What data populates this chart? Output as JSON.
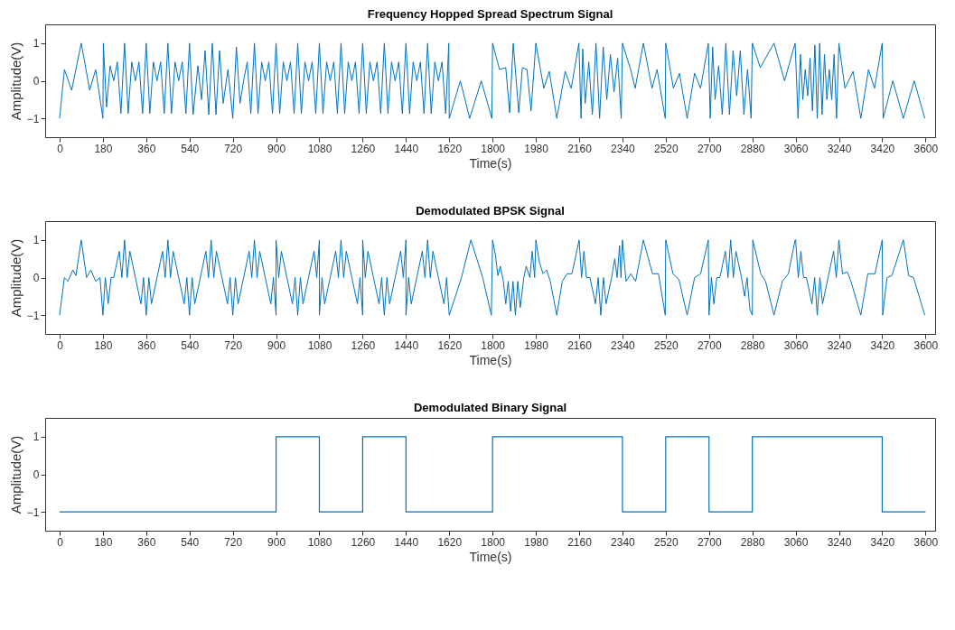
{
  "chart_data": [
    {
      "type": "line",
      "title": "Frequency Hopped Spread Spectrum Signal",
      "xlabel": "Time(s)",
      "ylabel": "Amplitude(V)",
      "color": "#0072bd",
      "xlim": [
        -60,
        3640
      ],
      "ylim": [
        -1.5,
        1.5
      ],
      "xticks": [
        0,
        180,
        360,
        540,
        720,
        900,
        1080,
        1260,
        1440,
        1620,
        1800,
        1980,
        2160,
        2340,
        2520,
        2700,
        2880,
        3060,
        3240,
        3420,
        3600
      ],
      "yticks": [
        -1,
        0,
        1
      ],
      "x": [
        0,
        20,
        50,
        90,
        125,
        150,
        180,
        182,
        195,
        210,
        225,
        240,
        255,
        270,
        285,
        300,
        315,
        330,
        345,
        360,
        375,
        390,
        405,
        420,
        435,
        450,
        465,
        480,
        495,
        510,
        525,
        540,
        555,
        575,
        590,
        605,
        620,
        635,
        650,
        665,
        680,
        700,
        720,
        735,
        750,
        765,
        780,
        795,
        810,
        825,
        840,
        855,
        870,
        885,
        900,
        915,
        930,
        945,
        960,
        975,
        990,
        1005,
        1020,
        1035,
        1050,
        1065,
        1080,
        1095,
        1110,
        1125,
        1140,
        1155,
        1170,
        1185,
        1200,
        1215,
        1230,
        1245,
        1260,
        1275,
        1290,
        1305,
        1320,
        1335,
        1350,
        1365,
        1380,
        1395,
        1410,
        1425,
        1440,
        1455,
        1470,
        1485,
        1500,
        1515,
        1530,
        1545,
        1560,
        1575,
        1590,
        1605,
        1618,
        1620,
        1666,
        1705,
        1753,
        1797,
        1800,
        1829,
        1855,
        1871,
        1886,
        1909,
        1924,
        1943,
        1960,
        1980,
        2013,
        2036,
        2067,
        2102,
        2127,
        2159,
        2168,
        2175,
        2185,
        2200,
        2215,
        2230,
        2245,
        2260,
        2275,
        2290,
        2305,
        2320,
        2335,
        2340,
        2374,
        2393,
        2427,
        2463,
        2484,
        2518,
        2520,
        2552,
        2577,
        2609,
        2640,
        2665,
        2697,
        2705,
        2715,
        2725,
        2740,
        2755,
        2770,
        2785,
        2800,
        2815,
        2830,
        2845,
        2860,
        2875,
        2880,
        2913,
        2970,
        3014,
        3058,
        3070,
        3080,
        3090,
        3100,
        3110,
        3120,
        3130,
        3140,
        3150,
        3160,
        3170,
        3180,
        3190,
        3200,
        3210,
        3220,
        3230,
        3240,
        3265,
        3299,
        3331,
        3363,
        3388,
        3420,
        3424,
        3464,
        3508,
        3553,
        3597
      ],
      "values": [
        -1,
        0.3,
        -0.25,
        1,
        -0.25,
        0.3,
        -1,
        1,
        -0.7,
        0.4,
        0,
        0.5,
        -0.87,
        1,
        -0.87,
        0.5,
        0,
        0.5,
        -0.87,
        1,
        -0.87,
        0.5,
        0,
        0.5,
        -0.87,
        1,
        -0.87,
        0.5,
        0,
        0.5,
        -0.87,
        1,
        -0.9,
        0.4,
        -0.5,
        0.8,
        -0.9,
        1,
        -0.9,
        0.8,
        -0.6,
        0.3,
        -1,
        0.9,
        -0.6,
        0,
        0.5,
        -0.87,
        1,
        -0.87,
        0.5,
        0,
        0.5,
        -0.87,
        1,
        -0.87,
        0.5,
        0,
        0.5,
        -0.87,
        1,
        -0.87,
        0.5,
        0,
        0.5,
        -0.87,
        1,
        -0.87,
        0.5,
        0,
        0.5,
        -0.87,
        1,
        -0.87,
        0.5,
        0,
        0.5,
        -0.87,
        1,
        -0.87,
        0.5,
        0,
        0.5,
        -0.87,
        1,
        -0.87,
        0.5,
        0,
        0.5,
        -0.87,
        1,
        -0.87,
        0.5,
        0,
        0.5,
        -0.87,
        1,
        -0.87,
        0.5,
        0,
        0.5,
        -0.87,
        1,
        -1,
        0,
        -1,
        0,
        -1,
        1,
        0.3,
        0.35,
        -0.85,
        1,
        -0.85,
        0.35,
        0.3,
        -0.8,
        1,
        -0.2,
        0.25,
        -1,
        0.25,
        -0.2,
        1,
        -1,
        0.85,
        -0.6,
        0.5,
        -0.9,
        1,
        -1,
        0.9,
        -0.5,
        0.7,
        -0.3,
        0.6,
        -1,
        1,
        0.3,
        -0.2,
        1,
        -0.2,
        0.3,
        -1,
        1,
        -0.2,
        0.2,
        -1,
        0.2,
        -0.2,
        1,
        -1,
        0.9,
        -0.5,
        0.4,
        -0.9,
        1,
        -0.9,
        0.8,
        -0.4,
        0.8,
        -0.9,
        0.3,
        -1,
        1,
        0.35,
        1,
        0,
        1,
        -1,
        0.7,
        -0.5,
        0.3,
        -0.4,
        0.6,
        -0.8,
        0.95,
        -1,
        1,
        -0.9,
        0.7,
        -0.5,
        0.3,
        -0.5,
        0.7,
        -1,
        1,
        -0.2,
        0.25,
        -1,
        0.3,
        -0.2,
        1,
        -1,
        0,
        -1,
        0,
        -1
      ]
    },
    {
      "type": "line",
      "title": "Demodulated BPSK Signal",
      "xlabel": "Time(s)",
      "ylabel": "Amplitude(V)",
      "color": "#0072bd",
      "xlim": [
        -60,
        3640
      ],
      "ylim": [
        -1.5,
        1.5
      ],
      "xticks": [
        0,
        180,
        360,
        540,
        720,
        900,
        1080,
        1260,
        1440,
        1620,
        1800,
        1980,
        2160,
        2340,
        2520,
        2700,
        2880,
        3060,
        3240,
        3420,
        3600
      ],
      "yticks": [
        -1,
        0,
        1
      ],
      "x": [
        0,
        20,
        35,
        55,
        68,
        90,
        112,
        130,
        150,
        168,
        180,
        190,
        202,
        214,
        225,
        248,
        259,
        270,
        281,
        292,
        315,
        338,
        349,
        360,
        371,
        382,
        405,
        428,
        439,
        450,
        461,
        472,
        495,
        518,
        529,
        540,
        551,
        562,
        585,
        608,
        619,
        630,
        641,
        652,
        675,
        698,
        709,
        720,
        731,
        742,
        765,
        788,
        799,
        810,
        821,
        832,
        855,
        878,
        889,
        900,
        900,
        911,
        922,
        945,
        968,
        979,
        990,
        1001,
        1012,
        1035,
        1058,
        1069,
        1080,
        1080,
        1091,
        1102,
        1125,
        1148,
        1159,
        1170,
        1181,
        1192,
        1215,
        1238,
        1249,
        1260,
        1260,
        1271,
        1282,
        1305,
        1328,
        1339,
        1350,
        1361,
        1372,
        1395,
        1418,
        1429,
        1440,
        1440,
        1451,
        1462,
        1485,
        1508,
        1519,
        1530,
        1541,
        1552,
        1575,
        1598,
        1609,
        1620,
        1671,
        1710,
        1759,
        1795,
        1800,
        1812,
        1822,
        1832,
        1845,
        1855,
        1865,
        1875,
        1885,
        1895,
        1905,
        1915,
        1930,
        1940,
        1955,
        1965,
        1975,
        1980,
        1995,
        2010,
        2025,
        2040,
        2067,
        2090,
        2110,
        2130,
        2160,
        2170,
        2180,
        2190,
        2205,
        2228,
        2239,
        2250,
        2261,
        2272,
        2295,
        2308,
        2318,
        2328,
        2334,
        2340,
        2355,
        2375,
        2395,
        2427,
        2465,
        2490,
        2518,
        2520,
        2550,
        2575,
        2609,
        2640,
        2665,
        2697,
        2700,
        2710,
        2720,
        2732,
        2745,
        2768,
        2779,
        2790,
        2801,
        2812,
        2835,
        2848,
        2858,
        2870,
        2880,
        2882,
        2915,
        2935,
        2970,
        3005,
        3030,
        3058,
        3060,
        3071,
        3082,
        3093,
        3105,
        3128,
        3139,
        3150,
        3161,
        3172,
        3195,
        3218,
        3229,
        3240,
        3255,
        3275,
        3290,
        3331,
        3360,
        3390,
        3420,
        3422,
        3440,
        3460,
        3508,
        3530,
        3550,
        3597
      ],
      "values": [
        -1,
        0,
        -0.1,
        0.2,
        0.05,
        1,
        0,
        0.2,
        -0.1,
        0,
        -1,
        0,
        -0.7,
        0,
        0,
        0.7,
        0,
        1,
        0,
        0.7,
        0,
        -0.7,
        0,
        -1,
        0,
        -0.7,
        0,
        0.7,
        0,
        1,
        0,
        0.7,
        0,
        -0.7,
        0,
        -1,
        0,
        -0.7,
        0,
        0.7,
        0,
        1,
        0,
        0.7,
        0,
        -0.7,
        0,
        -1,
        0,
        -0.7,
        0,
        0.7,
        0,
        1,
        0,
        0.7,
        0,
        -0.7,
        0,
        -1,
        1,
        0,
        0.7,
        0,
        -0.7,
        0,
        -1,
        0,
        -0.7,
        0,
        0.7,
        0,
        1,
        -1,
        0,
        -0.7,
        0,
        0.7,
        0,
        1,
        0,
        0.7,
        0,
        -0.7,
        0,
        -1,
        1,
        0,
        0.7,
        0,
        -0.7,
        0,
        -1,
        0,
        -0.7,
        0,
        0.7,
        0,
        1,
        -1,
        0,
        -0.7,
        0,
        0.7,
        0,
        1,
        0,
        0.7,
        0,
        -0.7,
        0,
        -1,
        0,
        1,
        0,
        -1,
        1,
        0.6,
        0.05,
        0.3,
        -0.1,
        -0.7,
        -0.1,
        -0.9,
        -0.1,
        -1,
        -0.1,
        -0.8,
        0,
        0.3,
        0,
        0.7,
        0,
        1,
        0.4,
        0.1,
        0.2,
        -0.1,
        -1,
        -0.1,
        0.1,
        0.1,
        1,
        0,
        0.7,
        0,
        0,
        -0.7,
        0,
        -1,
        0,
        -0.7,
        0,
        0.5,
        0,
        0.85,
        0,
        1,
        -0.1,
        0.1,
        -0.1,
        1,
        0.1,
        0.1,
        -1,
        1,
        0.1,
        -0.05,
        -1,
        0,
        0.1,
        1,
        -1,
        0,
        -0.7,
        0,
        0,
        0.7,
        0,
        1,
        0,
        0.7,
        0,
        -0.5,
        0,
        -0.85,
        -1,
        1,
        0.1,
        -0.1,
        -1,
        -0.1,
        0.1,
        1,
        1,
        0,
        0.7,
        0,
        0,
        -0.7,
        0,
        -1,
        0,
        -0.7,
        0,
        0.7,
        0,
        1,
        0.1,
        0.15,
        -0.1,
        -1,
        0.1,
        0.1,
        1,
        -1,
        0,
        0.05,
        1,
        0.05,
        0,
        -1
      ]
    },
    {
      "type": "step",
      "title": "Demodulated Binary Signal",
      "xlabel": "Time(s)",
      "ylabel": "Amplitude(V)",
      "color": "#0072bd",
      "xlim": [
        -60,
        3640
      ],
      "ylim": [
        -1.5,
        1.5
      ],
      "xticks": [
        0,
        180,
        360,
        540,
        720,
        900,
        1080,
        1260,
        1440,
        1620,
        1800,
        1980,
        2160,
        2340,
        2520,
        2700,
        2880,
        3060,
        3240,
        3420,
        3600
      ],
      "yticks": [
        -1,
        0,
        1
      ],
      "x": [
        0,
        900,
        1080,
        1260,
        1440,
        1800,
        2340,
        2520,
        2700,
        2880,
        3420,
        3600
      ],
      "values": [
        -1,
        1,
        -1,
        1,
        -1,
        1,
        -1,
        1,
        -1,
        1,
        -1,
        -1
      ]
    }
  ]
}
